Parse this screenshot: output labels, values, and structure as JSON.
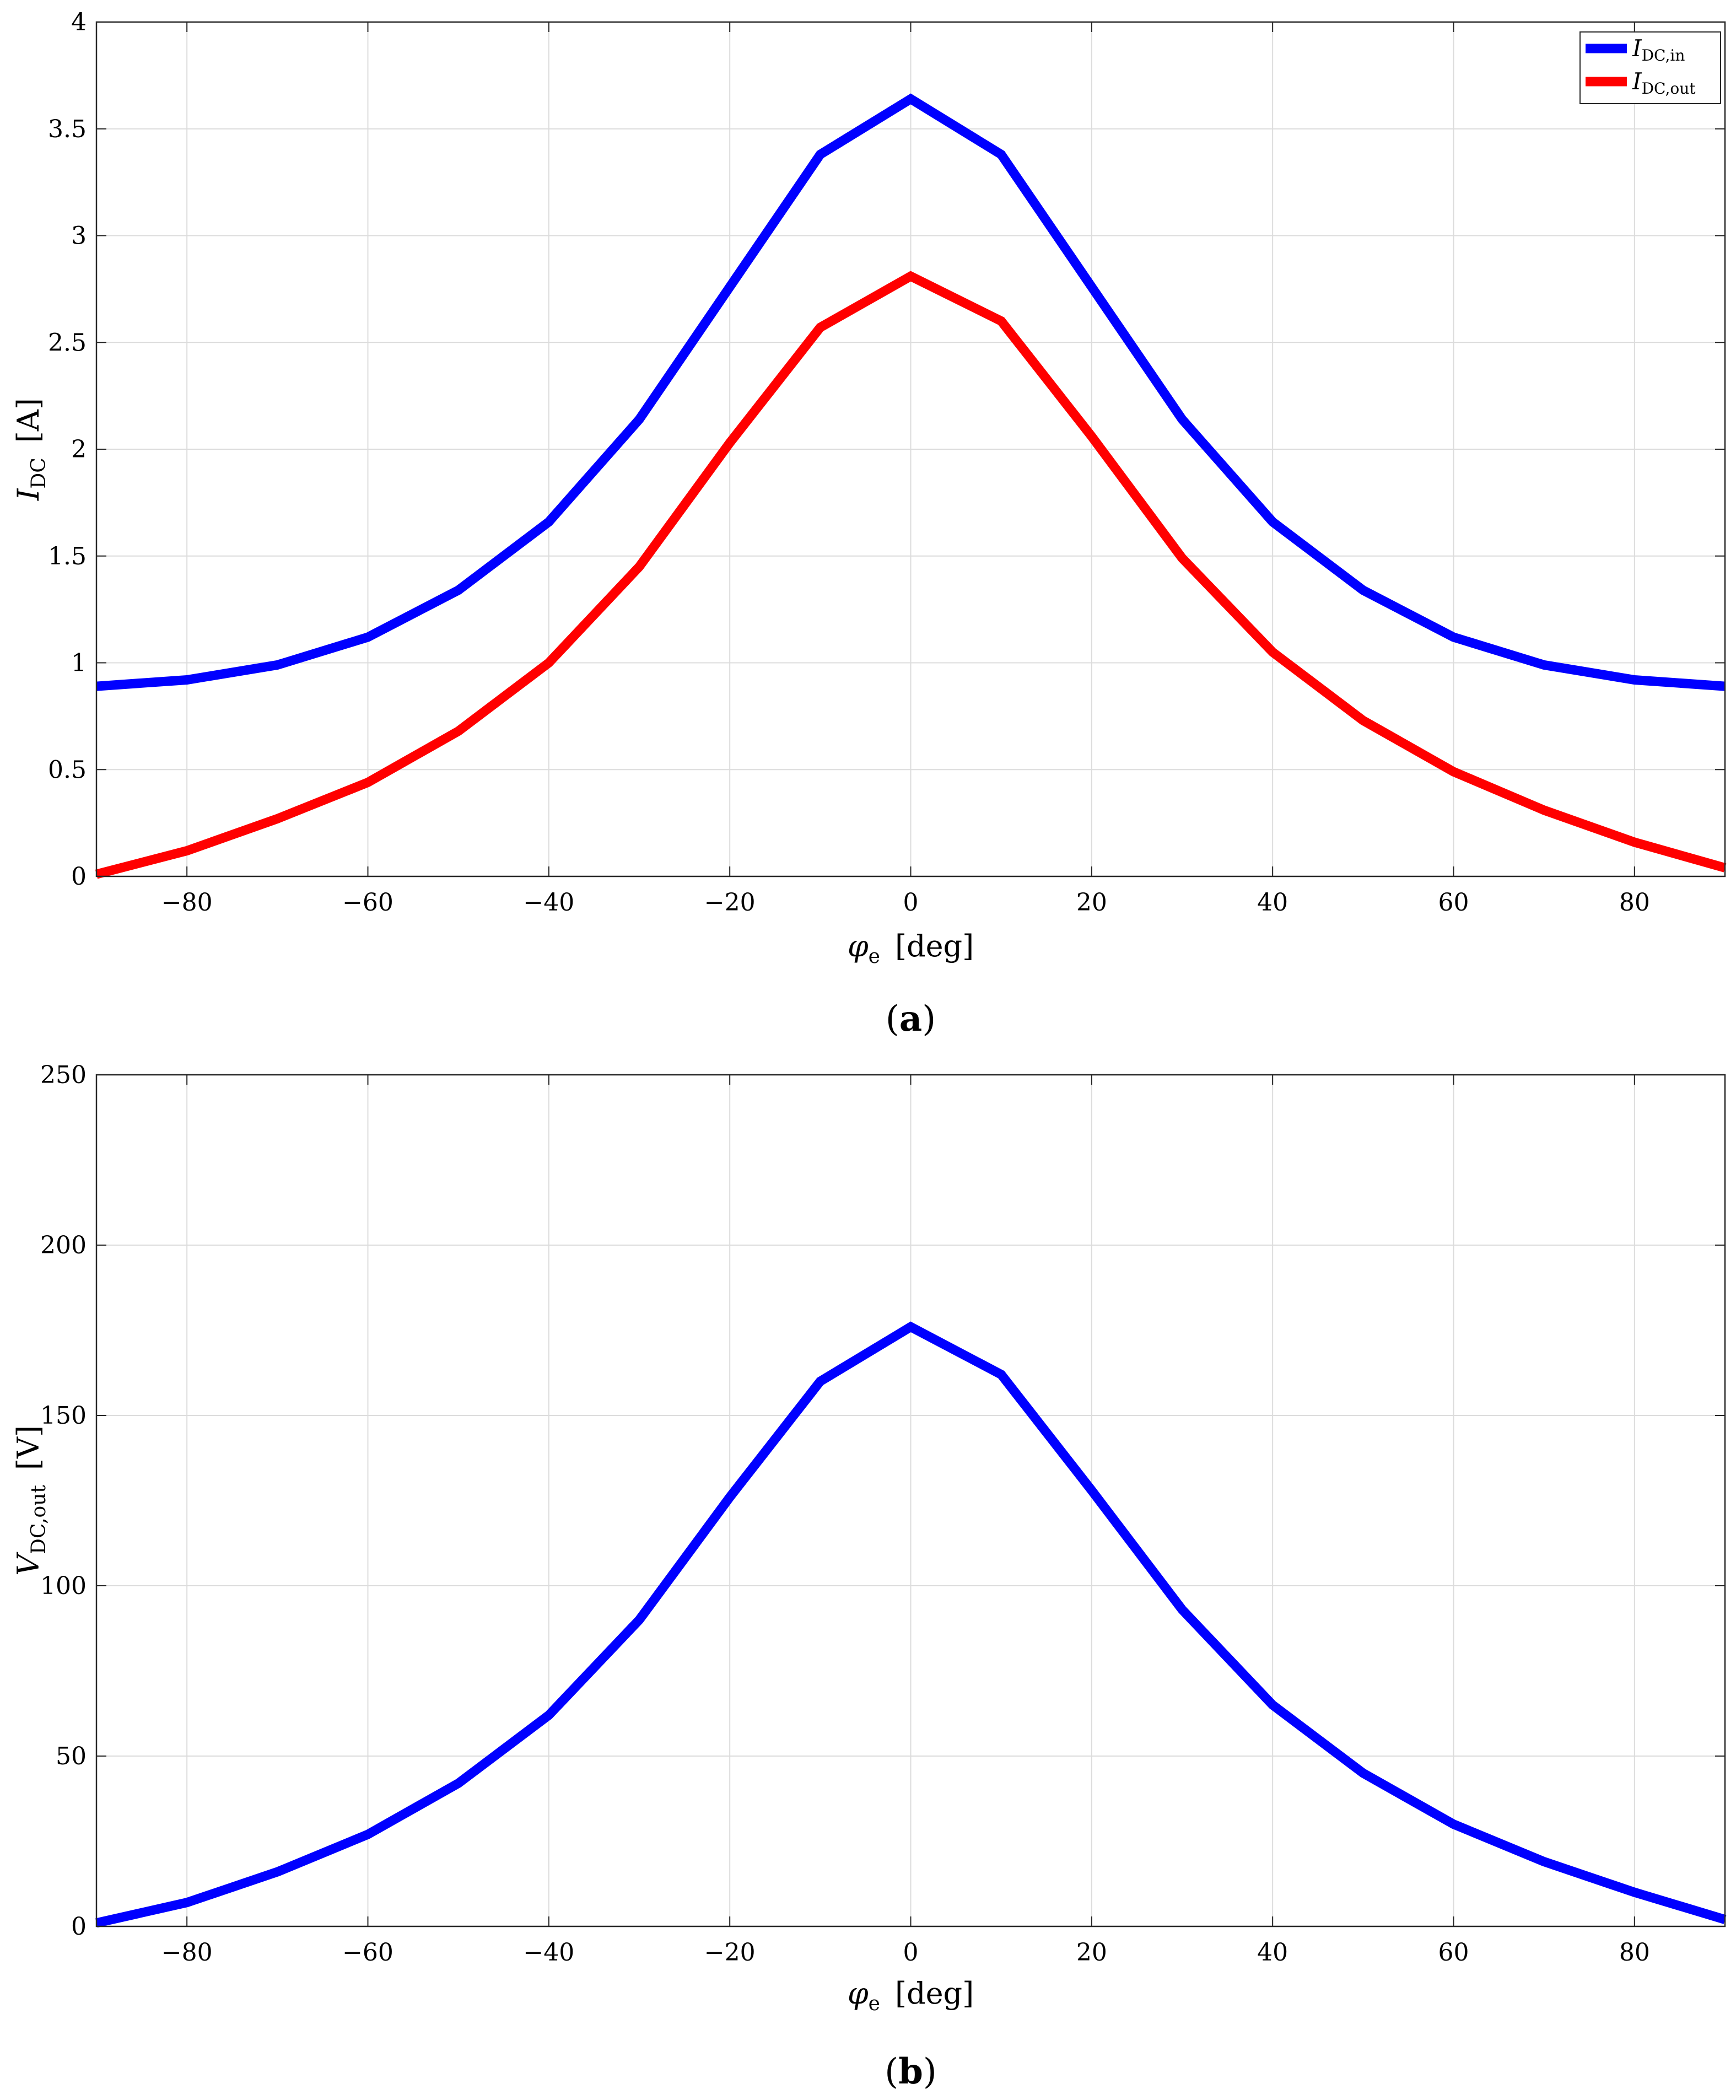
{
  "chart_data": [
    {
      "id": "a",
      "panel_label_letter": "a",
      "type": "line",
      "xlabel": {
        "symbol": "φ",
        "sub": "e",
        "unit": "[deg]"
      },
      "ylabel": {
        "symbol": "I",
        "sub": "DC",
        "unit": "[A]"
      },
      "xlim": [
        -90,
        90
      ],
      "ylim": [
        0,
        4
      ],
      "xticks": [
        -80,
        -60,
        -40,
        -20,
        0,
        20,
        40,
        60,
        80
      ],
      "yticks": [
        0,
        0.5,
        1,
        1.5,
        2,
        2.5,
        3,
        3.5,
        4
      ],
      "grid": true,
      "legend_position": "top-right",
      "x": [
        -90,
        -80,
        -70,
        -60,
        -50,
        -40,
        -30,
        -20,
        -10,
        0,
        10,
        20,
        30,
        40,
        50,
        60,
        70,
        80,
        90
      ],
      "series": [
        {
          "name": {
            "symbol": "I",
            "sub": "DC,in"
          },
          "color": "#0000ff",
          "values": [
            0.89,
            0.92,
            0.99,
            1.12,
            1.34,
            1.66,
            2.14,
            2.76,
            3.38,
            3.64,
            3.38,
            2.76,
            2.14,
            1.66,
            1.34,
            1.12,
            0.99,
            0.92,
            0.89
          ]
        },
        {
          "name": {
            "symbol": "I",
            "sub": "DC,out"
          },
          "color": "#ff0000",
          "values": [
            0.01,
            0.12,
            0.27,
            0.44,
            0.68,
            1.0,
            1.45,
            2.03,
            2.57,
            2.81,
            2.6,
            2.06,
            1.49,
            1.05,
            0.73,
            0.49,
            0.31,
            0.16,
            0.04
          ]
        }
      ]
    },
    {
      "id": "b",
      "panel_label_letter": "b",
      "type": "line",
      "xlabel": {
        "symbol": "φ",
        "sub": "e",
        "unit": "[deg]"
      },
      "ylabel": {
        "symbol": "V",
        "sub": "DC,out",
        "unit": "[V]"
      },
      "xlim": [
        -90,
        90
      ],
      "ylim": [
        0,
        250
      ],
      "xticks": [
        -80,
        -60,
        -40,
        -20,
        0,
        20,
        40,
        60,
        80
      ],
      "yticks": [
        0,
        50,
        100,
        150,
        200,
        250
      ],
      "grid": true,
      "legend_position": "none",
      "x": [
        -90,
        -80,
        -70,
        -60,
        -50,
        -40,
        -30,
        -20,
        -10,
        0,
        10,
        20,
        30,
        40,
        50,
        60,
        70,
        80,
        90
      ],
      "series": [
        {
          "color": "#0000ff",
          "values": [
            1,
            7,
            16,
            27,
            42,
            62,
            90,
            126,
            160,
            176,
            162,
            128,
            93,
            65,
            45,
            30,
            19,
            10,
            2
          ]
        }
      ]
    }
  ]
}
